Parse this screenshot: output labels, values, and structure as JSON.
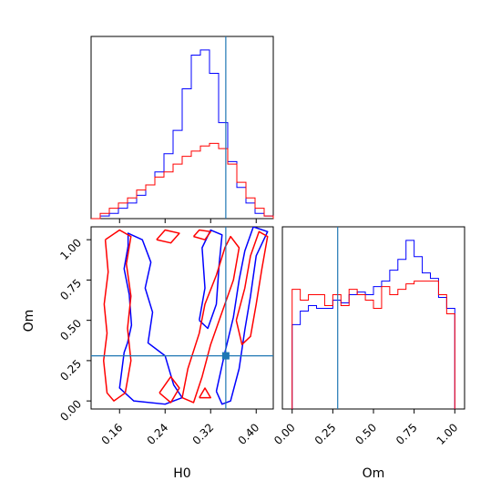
{
  "chart_data": [
    {
      "type": "histogram",
      "panel": "H0 marginal",
      "x_range": [
        0.11,
        0.43
      ],
      "bins": 20,
      "series": [
        {
          "color": "#0000ff",
          "counts": [
            0,
            1,
            2,
            4,
            6,
            9,
            13,
            18,
            25,
            34,
            50,
            63,
            65,
            56,
            37,
            22,
            12,
            6,
            2,
            1
          ]
        },
        {
          "color": "#ff0000",
          "counts": [
            0,
            2,
            4,
            6,
            8,
            11,
            13,
            16,
            18,
            21,
            24,
            26,
            28,
            29,
            27,
            21,
            14,
            8,
            4,
            1
          ]
        }
      ],
      "truth": 0.3466,
      "xticks": [
        0.16,
        0.24,
        0.32,
        0.4
      ]
    },
    {
      "type": "contour",
      "panel": "H0 vs Om",
      "xlabel": "H0",
      "ylabel": "Om",
      "xlim": [
        0.11,
        0.43
      ],
      "ylim": [
        -0.05,
        1.08
      ],
      "xticks": [
        "0.16",
        "0.24",
        "0.32",
        "0.40"
      ],
      "yticks": [
        "0.00",
        "0.25",
        "0.50",
        "0.75",
        "1.00"
      ],
      "truth": {
        "x": 0.3466,
        "y": 0.28
      },
      "series": [
        {
          "color": "#0000ff",
          "contours": [
            [
              [
                0.175,
                0.96
              ],
              [
                0.168,
                0.82
              ],
              [
                0.177,
                0.66
              ],
              [
                0.181,
                0.47
              ],
              [
                0.174,
                0.36
              ],
              [
                0.168,
                0.3
              ],
              [
                0.16,
                0.08
              ],
              [
                0.185,
                -0.0
              ],
              [
                0.24,
                -0.02
              ],
              [
                0.27,
                0.02
              ],
              [
                0.255,
                0.1
              ],
              [
                0.24,
                0.28
              ],
              [
                0.21,
                0.36
              ],
              [
                0.218,
                0.55
              ],
              [
                0.205,
                0.7
              ],
              [
                0.215,
                0.86
              ],
              [
                0.2,
                1.0
              ],
              [
                0.175,
                1.04
              ],
              [
                0.175,
                0.96
              ]
            ],
            [
              [
                0.33,
                0.06
              ],
              [
                0.345,
                0.3
              ],
              [
                0.36,
                0.52
              ],
              [
                0.37,
                0.75
              ],
              [
                0.38,
                0.93
              ],
              [
                0.395,
                1.08
              ],
              [
                0.42,
                1.05
              ],
              [
                0.4,
                0.9
              ],
              [
                0.39,
                0.65
              ],
              [
                0.38,
                0.44
              ],
              [
                0.37,
                0.2
              ],
              [
                0.355,
                0.0
              ],
              [
                0.34,
                -0.02
              ],
              [
                0.33,
                0.06
              ]
            ],
            [
              [
                0.3,
                0.5
              ],
              [
                0.31,
                0.7
              ],
              [
                0.305,
                0.95
              ],
              [
                0.32,
                1.06
              ],
              [
                0.34,
                1.03
              ],
              [
                0.335,
                0.85
              ],
              [
                0.33,
                0.6
              ],
              [
                0.315,
                0.45
              ],
              [
                0.3,
                0.5
              ]
            ]
          ]
        },
        {
          "color": "#ff0000",
          "contours": [
            [
              [
                0.135,
                1.0
              ],
              [
                0.14,
                0.8
              ],
              [
                0.133,
                0.6
              ],
              [
                0.138,
                0.42
              ],
              [
                0.132,
                0.25
              ],
              [
                0.138,
                0.05
              ],
              [
                0.15,
                -0.0
              ],
              [
                0.17,
                0.05
              ],
              [
                0.18,
                0.25
              ],
              [
                0.174,
                0.45
              ],
              [
                0.18,
                0.65
              ],
              [
                0.172,
                0.85
              ],
              [
                0.18,
                1.02
              ],
              [
                0.16,
                1.06
              ],
              [
                0.135,
                1.0
              ]
            ],
            [
              [
                0.27,
                0.02
              ],
              [
                0.28,
                0.2
              ],
              [
                0.3,
                0.42
              ],
              [
                0.31,
                0.6
              ],
              [
                0.33,
                0.78
              ],
              [
                0.345,
                0.95
              ],
              [
                0.355,
                1.02
              ],
              [
                0.37,
                0.95
              ],
              [
                0.36,
                0.75
              ],
              [
                0.34,
                0.55
              ],
              [
                0.32,
                0.35
              ],
              [
                0.305,
                0.15
              ],
              [
                0.29,
                -0.01
              ],
              [
                0.27,
                0.02
              ]
            ],
            [
              [
                0.365,
                0.5
              ],
              [
                0.38,
                0.7
              ],
              [
                0.39,
                0.9
              ],
              [
                0.405,
                1.05
              ],
              [
                0.42,
                1.02
              ],
              [
                0.41,
                0.82
              ],
              [
                0.4,
                0.6
              ],
              [
                0.39,
                0.4
              ],
              [
                0.375,
                0.35
              ],
              [
                0.365,
                0.5
              ]
            ],
            [
              [
                0.23,
                0.05
              ],
              [
                0.25,
                0.15
              ],
              [
                0.265,
                0.08
              ],
              [
                0.25,
                -0.01
              ],
              [
                0.23,
                0.05
              ]
            ],
            [
              [
                0.225,
                1.0
              ],
              [
                0.24,
                1.06
              ],
              [
                0.265,
                1.04
              ],
              [
                0.25,
                0.98
              ],
              [
                0.225,
                1.0
              ]
            ],
            [
              [
                0.29,
                1.02
              ],
              [
                0.3,
                1.06
              ],
              [
                0.32,
                1.05
              ],
              [
                0.31,
                1.0
              ],
              [
                0.29,
                1.02
              ]
            ],
            [
              [
                0.3,
                0.02
              ],
              [
                0.31,
                0.08
              ],
              [
                0.32,
                0.02
              ],
              [
                0.3,
                0.02
              ]
            ]
          ]
        }
      ]
    },
    {
      "type": "histogram",
      "panel": "Om marginal",
      "xlabel": "Om",
      "x_range": [
        0.0,
        1.0
      ],
      "bins": 20,
      "series": [
        {
          "color": "#0000ff",
          "counts": [
            31,
            36,
            38,
            37,
            37,
            40,
            39,
            42,
            43,
            42,
            45,
            47,
            51,
            55,
            62,
            56,
            50,
            48,
            41,
            37
          ]
        },
        {
          "color": "#ff0000",
          "counts": [
            44,
            40,
            42,
            42,
            38,
            42,
            38,
            44,
            42,
            40,
            37,
            45,
            42,
            44,
            46,
            47,
            47,
            47,
            42,
            35
          ]
        }
      ],
      "truth": 0.28,
      "xticks": [
        "0.00",
        "0.25",
        "0.50",
        "0.75",
        "1.00"
      ]
    }
  ]
}
